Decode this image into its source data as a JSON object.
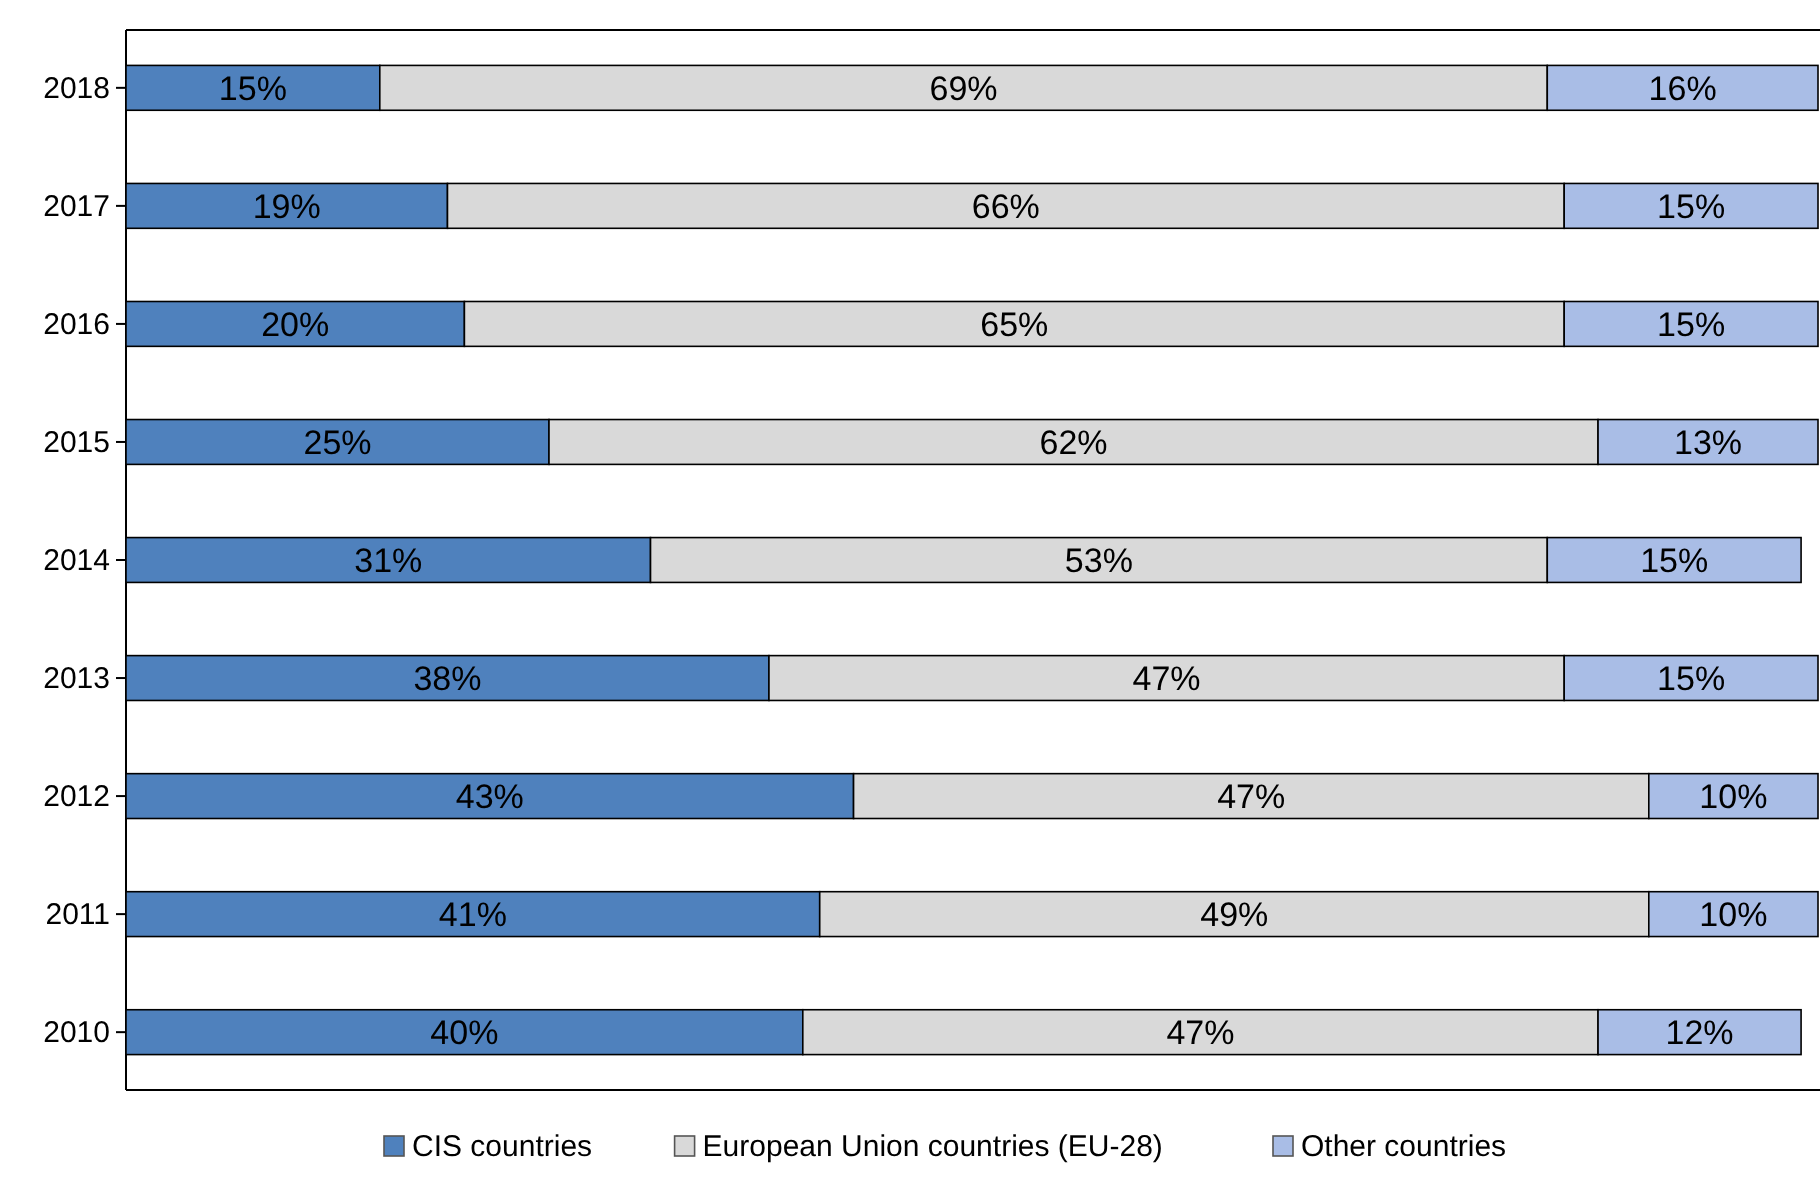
{
  "chart_data": {
    "type": "bar",
    "orientation": "horizontal",
    "stacked": true,
    "categories": [
      "2018",
      "2017",
      "2016",
      "2015",
      "2014",
      "2013",
      "2012",
      "2011",
      "2010"
    ],
    "series": [
      {
        "name": "CIS countries",
        "color": "#4f81bd",
        "values": [
          15,
          19,
          20,
          25,
          31,
          38,
          43,
          41,
          40
        ],
        "value_labels": [
          "15%",
          "19%",
          "20%",
          "25%",
          "31%",
          "38%",
          "43%",
          "41%",
          "40%"
        ]
      },
      {
        "name": "European Union countries (EU-28)",
        "color": "#d9d9d9",
        "values": [
          69,
          66,
          65,
          62,
          53,
          47,
          47,
          49,
          47
        ],
        "value_labels": [
          "69%",
          "66%",
          "65%",
          "62%",
          "53%",
          "47%",
          "47%",
          "49%",
          "47%"
        ]
      },
      {
        "name": "Other countries",
        "color": "#a9bde6",
        "values": [
          16,
          15,
          15,
          13,
          15,
          15,
          10,
          10,
          12
        ],
        "value_labels": [
          "16%",
          "15%",
          "15%",
          "13%",
          "15%",
          "15%",
          "10%",
          "10%",
          "12%"
        ]
      }
    ],
    "tick_labels": "y",
    "legend": "bottom"
  }
}
